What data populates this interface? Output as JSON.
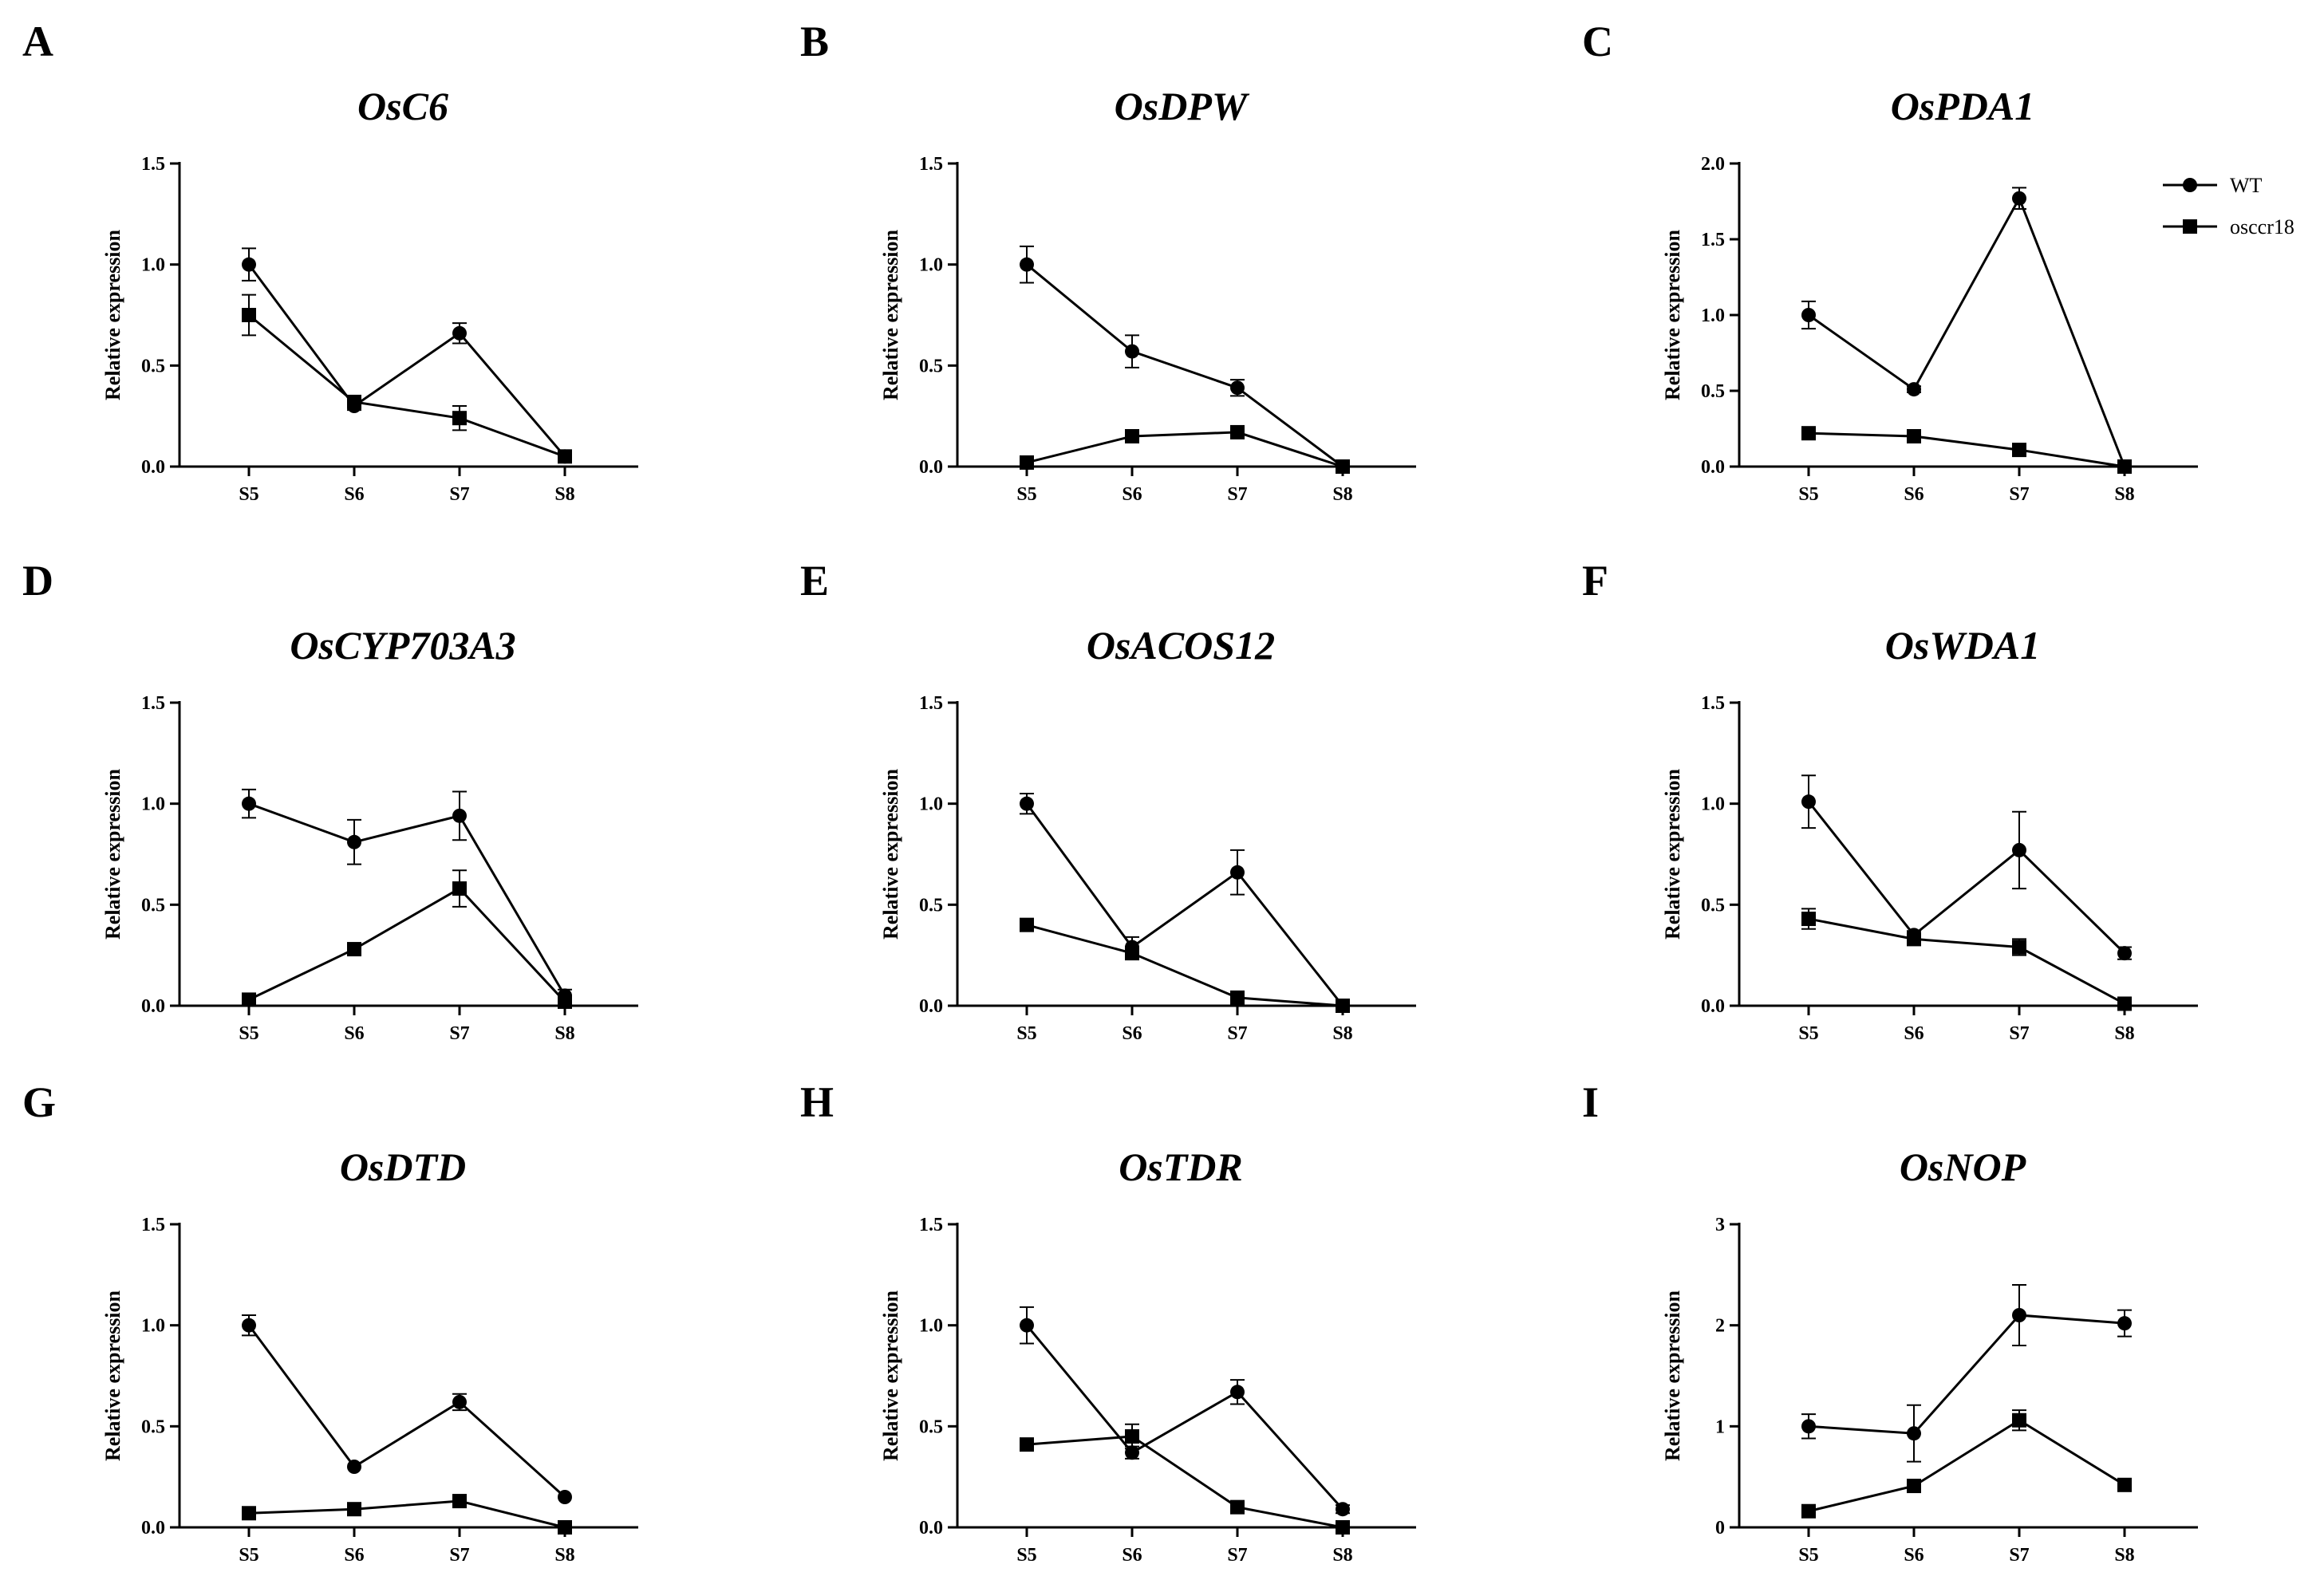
{
  "legend": [
    {
      "name": "WT",
      "marker": "circle"
    },
    {
      "name": "osccr18",
      "marker": "square"
    }
  ],
  "colors": {
    "line": "#000000",
    "background": "#ffffff"
  },
  "chart_data": [
    {
      "panel": "A",
      "type": "line",
      "title": "OsC6",
      "xlabel": "",
      "ylabel": "Relative expression",
      "categories": [
        "S5",
        "S6",
        "S7",
        "S8"
      ],
      "ylim": [
        0,
        1.5
      ],
      "yticks": [
        "0.0",
        "0.5",
        "1.0",
        "1.5"
      ],
      "yticks_values": [
        0,
        0.5,
        1,
        1.5
      ],
      "series": [
        {
          "name": "WT",
          "values": [
            1.0,
            0.3,
            0.66,
            0.05
          ],
          "errors": [
            0.08,
            0.02,
            0.05,
            0.02
          ]
        },
        {
          "name": "osccr18",
          "values": [
            0.75,
            0.32,
            0.24,
            0.05
          ],
          "errors": [
            0.1,
            0.02,
            0.06,
            0.02
          ]
        }
      ]
    },
    {
      "panel": "B",
      "type": "line",
      "title": "OsDPW",
      "xlabel": "",
      "ylabel": "Relative expression",
      "categories": [
        "S5",
        "S6",
        "S7",
        "S8"
      ],
      "ylim": [
        0,
        1.5
      ],
      "yticks": [
        "0.0",
        "0.5",
        "1.0",
        "1.5"
      ],
      "yticks_values": [
        0,
        0.5,
        1,
        1.5
      ],
      "series": [
        {
          "name": "WT",
          "values": [
            1.0,
            0.57,
            0.39,
            0.0
          ],
          "errors": [
            0.09,
            0.08,
            0.04,
            0.0
          ]
        },
        {
          "name": "osccr18",
          "values": [
            0.02,
            0.15,
            0.17,
            0.0
          ],
          "errors": [
            0.0,
            0.0,
            0.0,
            0.0
          ]
        }
      ]
    },
    {
      "panel": "C",
      "type": "line",
      "title": "OsPDA1",
      "xlabel": "",
      "ylabel": "Relative expression",
      "categories": [
        "S5",
        "S6",
        "S7",
        "S8"
      ],
      "ylim": [
        0,
        2.0
      ],
      "yticks": [
        "0.0",
        "0.5",
        "1.0",
        "1.5",
        "2.0"
      ],
      "yticks_values": [
        0,
        0.5,
        1,
        1.5,
        2
      ],
      "series": [
        {
          "name": "WT",
          "values": [
            1.0,
            0.51,
            1.77,
            0.0
          ],
          "errors": [
            0.09,
            0.02,
            0.07,
            0.0
          ]
        },
        {
          "name": "osccr18",
          "values": [
            0.22,
            0.2,
            0.11,
            0.0
          ],
          "errors": [
            0.0,
            0.0,
            0.0,
            0.0
          ]
        }
      ]
    },
    {
      "panel": "D",
      "type": "line",
      "title": "OsCYP703A3",
      "xlabel": "",
      "ylabel": "Relative expression",
      "categories": [
        "S5",
        "S6",
        "S7",
        "S8"
      ],
      "ylim": [
        0,
        1.5
      ],
      "yticks": [
        "0.0",
        "0.5",
        "1.0",
        "1.5"
      ],
      "yticks_values": [
        0,
        0.5,
        1,
        1.5
      ],
      "series": [
        {
          "name": "WT",
          "values": [
            1.0,
            0.81,
            0.94,
            0.05
          ],
          "errors": [
            0.07,
            0.11,
            0.12,
            0.03
          ]
        },
        {
          "name": "osccr18",
          "values": [
            0.03,
            0.28,
            0.58,
            0.02
          ],
          "errors": [
            0.0,
            0.03,
            0.09,
            0.0
          ]
        }
      ]
    },
    {
      "panel": "E",
      "type": "line",
      "title": "OsACOS12",
      "xlabel": "",
      "ylabel": "Relative expression",
      "categories": [
        "S5",
        "S6",
        "S7",
        "S8"
      ],
      "ylim": [
        0,
        1.5
      ],
      "yticks": [
        "0.0",
        "0.5",
        "1.0",
        "1.5"
      ],
      "yticks_values": [
        0,
        0.5,
        1,
        1.5
      ],
      "series": [
        {
          "name": "WT",
          "values": [
            1.0,
            0.29,
            0.66,
            0.0
          ],
          "errors": [
            0.05,
            0.05,
            0.11,
            0.0
          ]
        },
        {
          "name": "osccr18",
          "values": [
            0.4,
            0.26,
            0.04,
            0.0
          ],
          "errors": [
            0.0,
            0.02,
            0.0,
            0.0
          ]
        }
      ]
    },
    {
      "panel": "F",
      "type": "line",
      "title": "OsWDA1",
      "xlabel": "",
      "ylabel": "Relative expression",
      "categories": [
        "S5",
        "S6",
        "S7",
        "S8"
      ],
      "ylim": [
        0,
        1.5
      ],
      "yticks": [
        "0.0",
        "0.5",
        "1.0",
        "1.5"
      ],
      "yticks_values": [
        0,
        0.5,
        1,
        1.5
      ],
      "series": [
        {
          "name": "WT",
          "values": [
            1.01,
            0.35,
            0.77,
            0.26
          ],
          "errors": [
            0.13,
            0.02,
            0.19,
            0.03
          ]
        },
        {
          "name": "osccr18",
          "values": [
            0.43,
            0.33,
            0.29,
            0.01
          ],
          "errors": [
            0.05,
            0.02,
            0.04,
            0.0
          ]
        }
      ]
    },
    {
      "panel": "G",
      "type": "line",
      "title": "OsDTD",
      "xlabel": "",
      "ylabel": "Relative expression",
      "categories": [
        "S5",
        "S6",
        "S7",
        "S8"
      ],
      "ylim": [
        0,
        1.5
      ],
      "yticks": [
        "0.0",
        "0.5",
        "1.0",
        "1.5"
      ],
      "yticks_values": [
        0,
        0.5,
        1,
        1.5
      ],
      "series": [
        {
          "name": "WT",
          "values": [
            1.0,
            0.3,
            0.62,
            0.15
          ],
          "errors": [
            0.05,
            0.0,
            0.04,
            0.0
          ]
        },
        {
          "name": "osccr18",
          "values": [
            0.07,
            0.09,
            0.13,
            0.0
          ],
          "errors": [
            0.0,
            0.0,
            0.0,
            0.0
          ]
        }
      ]
    },
    {
      "panel": "H",
      "type": "line",
      "title": "OsTDR",
      "xlabel": "",
      "ylabel": "Relative expression",
      "categories": [
        "S5",
        "S6",
        "S7",
        "S8"
      ],
      "ylim": [
        0,
        1.5
      ],
      "yticks": [
        "0.0",
        "0.5",
        "1.0",
        "1.5"
      ],
      "yticks_values": [
        0,
        0.5,
        1,
        1.5
      ],
      "series": [
        {
          "name": "WT",
          "values": [
            1.0,
            0.37,
            0.67,
            0.09
          ],
          "errors": [
            0.09,
            0.03,
            0.06,
            0.02
          ]
        },
        {
          "name": "osccr18",
          "values": [
            0.41,
            0.45,
            0.1,
            0.0
          ],
          "errors": [
            0.0,
            0.06,
            0.0,
            0.0
          ]
        }
      ]
    },
    {
      "panel": "I",
      "type": "line",
      "title": "OsNOP",
      "xlabel": "",
      "ylabel": "Relative expression",
      "categories": [
        "S5",
        "S6",
        "S7",
        "S8"
      ],
      "ylim": [
        0,
        3
      ],
      "yticks": [
        "0",
        "1",
        "2",
        "3"
      ],
      "yticks_values": [
        0,
        1,
        2,
        3
      ],
      "series": [
        {
          "name": "WT",
          "values": [
            1.0,
            0.93,
            2.1,
            2.02
          ],
          "errors": [
            0.12,
            0.28,
            0.3,
            0.13
          ]
        },
        {
          "name": "osccr18",
          "values": [
            0.16,
            0.41,
            1.06,
            0.42
          ],
          "errors": [
            0.0,
            0.06,
            0.1,
            0.0
          ]
        }
      ]
    }
  ]
}
